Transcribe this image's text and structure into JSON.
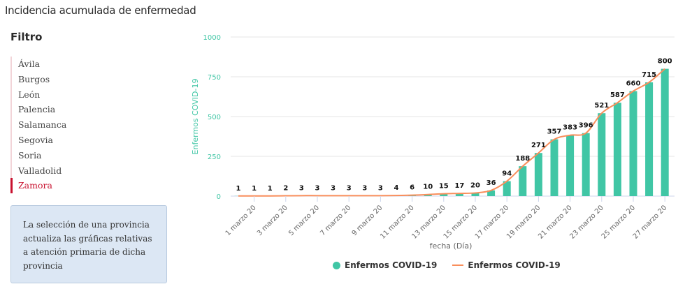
{
  "header": {
    "title": "Incidencia acumulada de enfermedad"
  },
  "filter": {
    "title": "Filtro",
    "items": [
      "Ávila",
      "Burgos",
      "León",
      "Palencia",
      "Salamanca",
      "Segovia",
      "Soria",
      "Valladolid",
      "Zamora"
    ],
    "selected": "Zamora",
    "info": "La selección de una provincia actualiza las gráficas relativas a atención primaria de dicha provincia"
  },
  "colors": {
    "bar": "#40c6a5",
    "line": "#f98e5b",
    "axis_title": "#40c6a5",
    "selected": "#c8102e"
  },
  "chart_data": {
    "type": "bar+line",
    "xlabel": "fecha (Día)",
    "ylabel": "Enfermos COVID-19",
    "ylim": [
      0,
      1000
    ],
    "yticks": [
      0,
      250,
      500,
      750,
      1000
    ],
    "grid": true,
    "legend_position": "bottom",
    "categories": [
      "",
      "1 marzo 20",
      "",
      "3 marzo 20",
      "",
      "5 marzo 20",
      "",
      "7 marzo 20",
      "",
      "9 marzo 20",
      "",
      "11 marzo 20",
      "",
      "13 marzo 20",
      "",
      "15 marzo 20",
      "",
      "17 marzo 20",
      "",
      "19 marzo 20",
      "",
      "21 marzo 20",
      "",
      "23 marzo 20",
      "",
      "25 marzo 20",
      "",
      "27 marzo 20"
    ],
    "series": [
      {
        "name": "Enfermos COVID-19",
        "type": "bar",
        "values": [
          1,
          1,
          1,
          2,
          3,
          3,
          3,
          3,
          3,
          3,
          4,
          6,
          10,
          15,
          17,
          20,
          36,
          94,
          188,
          271,
          357,
          383,
          396,
          521,
          587,
          660,
          715,
          800
        ]
      },
      {
        "name": "Enfermos COVID-19",
        "type": "line",
        "values": [
          1,
          1,
          1,
          2,
          3,
          3,
          3,
          3,
          3,
          3,
          4,
          6,
          10,
          15,
          17,
          20,
          36,
          94,
          188,
          271,
          357,
          383,
          396,
          521,
          587,
          660,
          715,
          800
        ]
      }
    ]
  }
}
